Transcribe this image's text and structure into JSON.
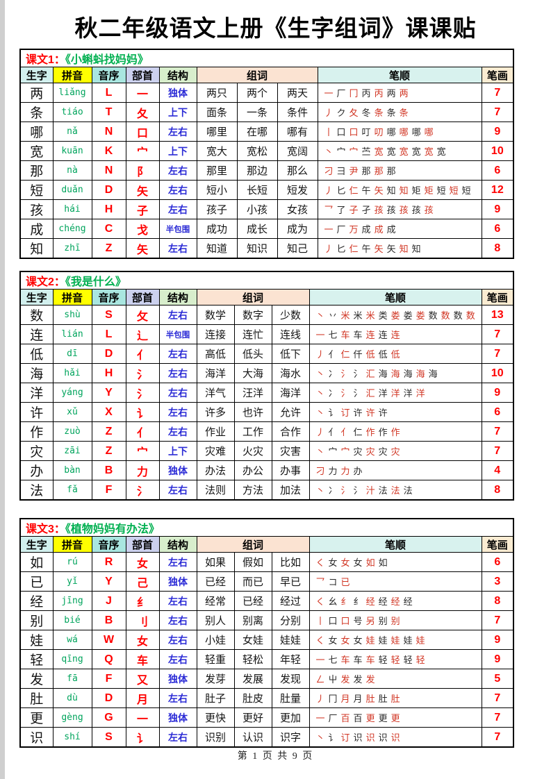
{
  "page": {
    "title": "秋二年级语文上册《生字组词》课课贴",
    "footer": "第 1 页 共 9 页"
  },
  "table_headers": {
    "zi": "生字",
    "pinyin": "拼音",
    "initial": "音序",
    "radical": "部首",
    "structure": "结构",
    "words": "组词",
    "strokes": "笔顺",
    "count": "笔画"
  },
  "lessons": [
    {
      "label": "课文1：",
      "title": "《小蝌蚪找妈妈》",
      "rows": [
        {
          "zi": "两",
          "pinyin": "liǎng",
          "initial": "L",
          "radical": "一",
          "structure": "独体",
          "words": [
            "两只",
            "两个",
            "两天"
          ],
          "strokes": [
            "一",
            "厂",
            "冂",
            "丙",
            "丙",
            "两",
            "两"
          ],
          "count": "7"
        },
        {
          "zi": "条",
          "pinyin": "tiáo",
          "initial": "T",
          "radical": "夂",
          "structure": "上下",
          "words": [
            "面条",
            "一条",
            "条件"
          ],
          "strokes": [
            "丿",
            "ク",
            "夂",
            "冬",
            "条",
            "条",
            "条"
          ],
          "count": "7"
        },
        {
          "zi": "哪",
          "pinyin": "nǎ",
          "initial": "N",
          "radical": "口",
          "structure": "左右",
          "words": [
            "哪里",
            "在哪",
            "哪有"
          ],
          "strokes": [
            "丨",
            "口",
            "口",
            "叮",
            "叨",
            "哪",
            "哪",
            "哪",
            "哪"
          ],
          "count": "9"
        },
        {
          "zi": "宽",
          "pinyin": "kuān",
          "initial": "K",
          "radical": "宀",
          "structure": "上下",
          "words": [
            "宽大",
            "宽松",
            "宽阔"
          ],
          "strokes": [
            "丶",
            "宀",
            "宀",
            "苎",
            "宽",
            "宽",
            "宽",
            "宽",
            "宽",
            "宽"
          ],
          "count": "10"
        },
        {
          "zi": "那",
          "pinyin": "nà",
          "initial": "N",
          "radical": "阝",
          "structure": "左右",
          "words": [
            "那里",
            "那边",
            "那么"
          ],
          "strokes": [
            "刁",
            "彐",
            "尹",
            "那",
            "那",
            "那"
          ],
          "count": "6"
        },
        {
          "zi": "短",
          "pinyin": "duǎn",
          "initial": "D",
          "radical": "矢",
          "structure": "左右",
          "words": [
            "短小",
            "长短",
            "短发"
          ],
          "strokes": [
            "丿",
            "匕",
            "仁",
            "午",
            "矢",
            "知",
            "知",
            "矩",
            "矩",
            "短",
            "短",
            "短"
          ],
          "count": "12"
        },
        {
          "zi": "孩",
          "pinyin": "hái",
          "initial": "H",
          "radical": "子",
          "structure": "左右",
          "words": [
            "孩子",
            "小孩",
            "女孩"
          ],
          "strokes": [
            "乛",
            "了",
            "子",
            "孑",
            "孩",
            "孩",
            "孩",
            "孩",
            "孩"
          ],
          "count": "9"
        },
        {
          "zi": "成",
          "pinyin": "chéng",
          "initial": "C",
          "radical": "戈",
          "structure": "半包围",
          "words": [
            "成功",
            "成长",
            "成为"
          ],
          "strokes": [
            "一",
            "厂",
            "万",
            "成",
            "成",
            "成"
          ],
          "count": "6"
        },
        {
          "zi": "知",
          "pinyin": "zhī",
          "initial": "Z",
          "radical": "矢",
          "structure": "左右",
          "words": [
            "知道",
            "知识",
            "知己"
          ],
          "strokes": [
            "丿",
            "匕",
            "仁",
            "午",
            "矢",
            "矢",
            "知",
            "知"
          ],
          "count": "8"
        }
      ]
    },
    {
      "label": "课文2：",
      "title": "《我是什么》",
      "rows": [
        {
          "zi": "数",
          "pinyin": "shù",
          "initial": "S",
          "radical": "攵",
          "structure": "左右",
          "words": [
            "数学",
            "数字",
            "少数"
          ],
          "strokes": [
            "丶",
            "丷",
            "米",
            "米",
            "米",
            "类",
            "娄",
            "娄",
            "娄",
            "数",
            "数",
            "数",
            "数"
          ],
          "count": "13"
        },
        {
          "zi": "连",
          "pinyin": "lián",
          "initial": "L",
          "radical": "辶",
          "structure": "半包围",
          "words": [
            "连接",
            "连忙",
            "连线"
          ],
          "strokes": [
            "一",
            "七",
            "车",
            "车",
            "连",
            "连",
            "连"
          ],
          "count": "7"
        },
        {
          "zi": "低",
          "pinyin": "dī",
          "initial": "D",
          "radical": "亻",
          "structure": "左右",
          "words": [
            "高低",
            "低头",
            "低下"
          ],
          "strokes": [
            "丿",
            "亻",
            "仁",
            "仟",
            "低",
            "低",
            "低"
          ],
          "count": "7"
        },
        {
          "zi": "海",
          "pinyin": "hǎi",
          "initial": "H",
          "radical": "氵",
          "structure": "左右",
          "words": [
            "海洋",
            "大海",
            "海水"
          ],
          "strokes": [
            "丶",
            "冫",
            "氵",
            "氵",
            "汇",
            "海",
            "海",
            "海",
            "海",
            "海"
          ],
          "count": "10"
        },
        {
          "zi": "洋",
          "pinyin": "yáng",
          "initial": "Y",
          "radical": "氵",
          "structure": "左右",
          "words": [
            "洋气",
            "汪洋",
            "海洋"
          ],
          "strokes": [
            "丶",
            "冫",
            "氵",
            "氵",
            "汇",
            "洋",
            "洋",
            "洋",
            "洋"
          ],
          "count": "9"
        },
        {
          "zi": "许",
          "pinyin": "xǔ",
          "initial": "X",
          "radical": "讠",
          "structure": "左右",
          "words": [
            "许多",
            "也许",
            "允许"
          ],
          "strokes": [
            "丶",
            "讠",
            "订",
            "许",
            "许",
            "许"
          ],
          "count": "6"
        },
        {
          "zi": "作",
          "pinyin": "zuò",
          "initial": "Z",
          "radical": "亻",
          "structure": "左右",
          "words": [
            "作业",
            "工作",
            "合作"
          ],
          "strokes": [
            "丿",
            "亻",
            "亻",
            "仁",
            "作",
            "作",
            "作"
          ],
          "count": "7"
        },
        {
          "zi": "灾",
          "pinyin": "zāi",
          "initial": "Z",
          "radical": "宀",
          "structure": "上下",
          "words": [
            "灾难",
            "火灾",
            "灾害"
          ],
          "strokes": [
            "丶",
            "宀",
            "宀",
            "灾",
            "灾",
            "灾",
            "灾"
          ],
          "count": "7"
        },
        {
          "zi": "办",
          "pinyin": "bàn",
          "initial": "B",
          "radical": "力",
          "structure": "独体",
          "words": [
            "办法",
            "办公",
            "办事"
          ],
          "strokes": [
            "刁",
            "力",
            "力",
            "办"
          ],
          "count": "4"
        },
        {
          "zi": "法",
          "pinyin": "fǎ",
          "initial": "F",
          "radical": "氵",
          "structure": "左右",
          "words": [
            "法则",
            "方法",
            "加法"
          ],
          "strokes": [
            "丶",
            "冫",
            "氵",
            "氵",
            "汁",
            "法",
            "法",
            "法"
          ],
          "count": "8"
        }
      ]
    },
    {
      "label": "课文3：",
      "title": "《植物妈妈有办法》",
      "rows": [
        {
          "zi": "如",
          "pinyin": "rú",
          "initial": "R",
          "radical": "女",
          "structure": "左右",
          "words": [
            "如果",
            "假如",
            "比如"
          ],
          "strokes": [
            "く",
            "女",
            "女",
            "女",
            "如",
            "如"
          ],
          "count": "6"
        },
        {
          "zi": "已",
          "pinyin": "yǐ",
          "initial": "Y",
          "radical": "己",
          "structure": "独体",
          "words": [
            "已经",
            "而已",
            "早已"
          ],
          "strokes": [
            "乛",
            "コ",
            "已"
          ],
          "count": "3"
        },
        {
          "zi": "经",
          "pinyin": "jīng",
          "initial": "J",
          "radical": "纟",
          "structure": "左右",
          "words": [
            "经常",
            "已经",
            "经过"
          ],
          "strokes": [
            "く",
            "幺",
            "纟",
            "纟",
            "经",
            "经",
            "经",
            "经"
          ],
          "count": "8"
        },
        {
          "zi": "别",
          "pinyin": "bié",
          "initial": "B",
          "radical": "刂",
          "structure": "左右",
          "words": [
            "别人",
            "别离",
            "分别"
          ],
          "strokes": [
            "丨",
            "口",
            "口",
            "号",
            "另",
            "别",
            "别"
          ],
          "count": "7"
        },
        {
          "zi": "娃",
          "pinyin": "wá",
          "initial": "W",
          "radical": "女",
          "structure": "左右",
          "words": [
            "小娃",
            "女娃",
            "娃娃"
          ],
          "strokes": [
            "く",
            "女",
            "女",
            "女",
            "娃",
            "娃",
            "娃",
            "娃",
            "娃"
          ],
          "count": "9"
        },
        {
          "zi": "轻",
          "pinyin": "qīng",
          "initial": "Q",
          "radical": "车",
          "structure": "左右",
          "words": [
            "轻重",
            "轻松",
            "年轻"
          ],
          "strokes": [
            "一",
            "七",
            "车",
            "车",
            "车",
            "轻",
            "轻",
            "轻",
            "轻"
          ],
          "count": "9"
        },
        {
          "zi": "发",
          "pinyin": "fā",
          "initial": "F",
          "radical": "又",
          "structure": "独体",
          "words": [
            "发芽",
            "发展",
            "发现"
          ],
          "strokes": [
            "ㄥ",
            "屮",
            "发",
            "发",
            "发"
          ],
          "count": "5"
        },
        {
          "zi": "肚",
          "pinyin": "dù",
          "initial": "D",
          "radical": "月",
          "structure": "左右",
          "words": [
            "肚子",
            "肚皮",
            "肚量"
          ],
          "strokes": [
            "丿",
            "冂",
            "月",
            "月",
            "肚",
            "肚",
            "肚"
          ],
          "count": "7"
        },
        {
          "zi": "更",
          "pinyin": "gèng",
          "initial": "G",
          "radical": "一",
          "structure": "独体",
          "words": [
            "更快",
            "更好",
            "更加"
          ],
          "strokes": [
            "一",
            "厂",
            "百",
            "百",
            "更",
            "更",
            "更"
          ],
          "count": "7"
        },
        {
          "zi": "识",
          "pinyin": "shí",
          "initial": "S",
          "radical": "讠",
          "structure": "左右",
          "words": [
            "识别",
            "认识",
            "识字"
          ],
          "strokes": [
            "丶",
            "讠",
            "订",
            "识",
            "识",
            "识",
            "识"
          ],
          "count": "7"
        }
      ]
    }
  ]
}
